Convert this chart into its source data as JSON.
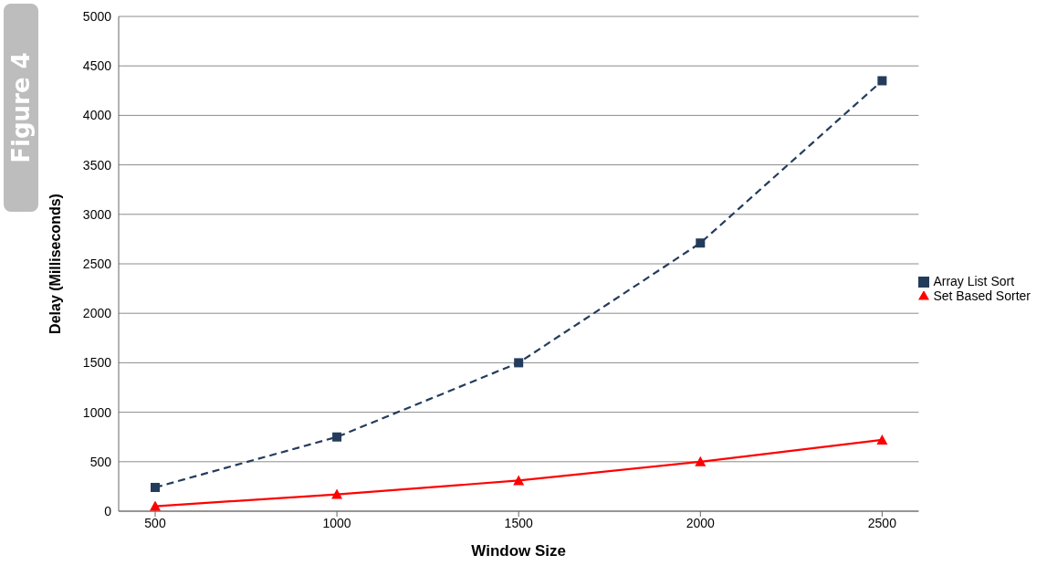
{
  "chart_data": {
    "type": "line",
    "xlabel": "Window Size",
    "ylabel": "Delay (Milliseconds)",
    "annotations": [
      "Figure 4"
    ],
    "categories": [
      "500",
      "1000",
      "1500",
      "2000",
      "2500"
    ],
    "series": [
      {
        "name": "Array List Sort",
        "color": "#243c5c",
        "values": [
          240,
          750,
          1500,
          2710,
          4350
        ],
        "marker": "square",
        "line_style": "dashed"
      },
      {
        "name": "Set Based Sorter",
        "color": "#ff0000",
        "values": [
          50,
          170,
          310,
          500,
          720
        ],
        "marker": "triangle",
        "line_style": "solid"
      }
    ],
    "ylim": [
      0,
      5000
    ],
    "yticks": [
      0,
      500,
      1000,
      1500,
      2000,
      2500,
      3000,
      3500,
      4000,
      4500,
      5000
    ],
    "grid": "y",
    "legend": "right"
  }
}
